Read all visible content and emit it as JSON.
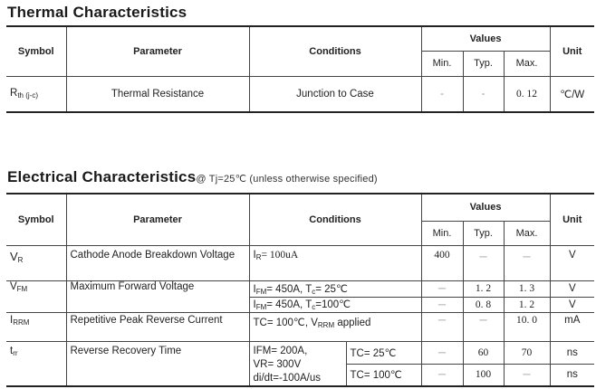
{
  "thermal": {
    "title": "Thermal  Characteristics",
    "headers": {
      "symbol": "Symbol",
      "parameter": "Parameter",
      "conditions": "Conditions",
      "values": "Values",
      "min": "Min.",
      "typ": "Typ.",
      "max": "Max.",
      "unit": "Unit"
    },
    "row": {
      "symbol": "R",
      "symbol_sub": "th (j-c)",
      "parameter": "Thermal  Resistance",
      "conditions": "Junction  to  Case",
      "min": "-",
      "typ": "-",
      "max": "0. 12",
      "unit": "℃/W"
    }
  },
  "electrical": {
    "title": "Electrical  Characteristics",
    "note": "@  Tj=25℃ (unless  otherwise  specified)",
    "headers": {
      "symbol": "Symbol",
      "parameter": "Parameter",
      "conditions": "Conditions",
      "values": "Values",
      "min": "Min.",
      "typ": "Typ.",
      "max": "Max.",
      "unit": "Unit"
    },
    "rows": [
      {
        "symbol": "V",
        "symbol_sub": "R",
        "parameter": "Cathode  Anode  Breakdown Voltage",
        "cond_main": "I",
        "cond_sub": "R",
        "cond_rest": "= 100uA",
        "min": "400",
        "typ": "－",
        "max": "－",
        "unit": "V"
      },
      {
        "symbol": "V",
        "symbol_sub": "FM",
        "parameter": "Maximum  Forward  Voltage",
        "conds": [
          {
            "text": "I",
            "sub": "FM",
            "rest": "= 450A,  T",
            "sub2": "c",
            "rest2": "=  25℃",
            "min": "－",
            "typ": "1. 2",
            "max": "1. 3",
            "unit": "V"
          },
          {
            "text": "I",
            "sub": "FM",
            "rest": "= 450A,  T",
            "sub2": "c",
            "rest2": "=100℃",
            "min": "－",
            "typ": "0. 8",
            "max": "1. 2",
            "unit": "V"
          }
        ]
      },
      {
        "symbol": "I",
        "symbol_sub": "RRM",
        "parameter": "Repetitive  Peak  Reverse Current",
        "cond_a": "TC= 100℃,  V",
        "cond_sub": "RRM",
        "cond_b": " applied",
        "min": "－",
        "typ": "－",
        "max": "10. 0",
        "unit": "mA"
      },
      {
        "symbol": "t",
        "symbol_sub": "rr",
        "parameter": "Reverse  Recovery  Time",
        "cond_lines": [
          "IFM= 200A,",
          "VR= 300V",
          "di/dt=-100A/us"
        ],
        "sub": [
          {
            "tc": "TC=  25℃",
            "min": "－",
            "typ": "60",
            "max": "70",
            "unit": "ns"
          },
          {
            "tc": "TC=  100℃",
            "min": "－",
            "typ": "100",
            "max": "－",
            "unit": "ns"
          }
        ]
      }
    ]
  }
}
